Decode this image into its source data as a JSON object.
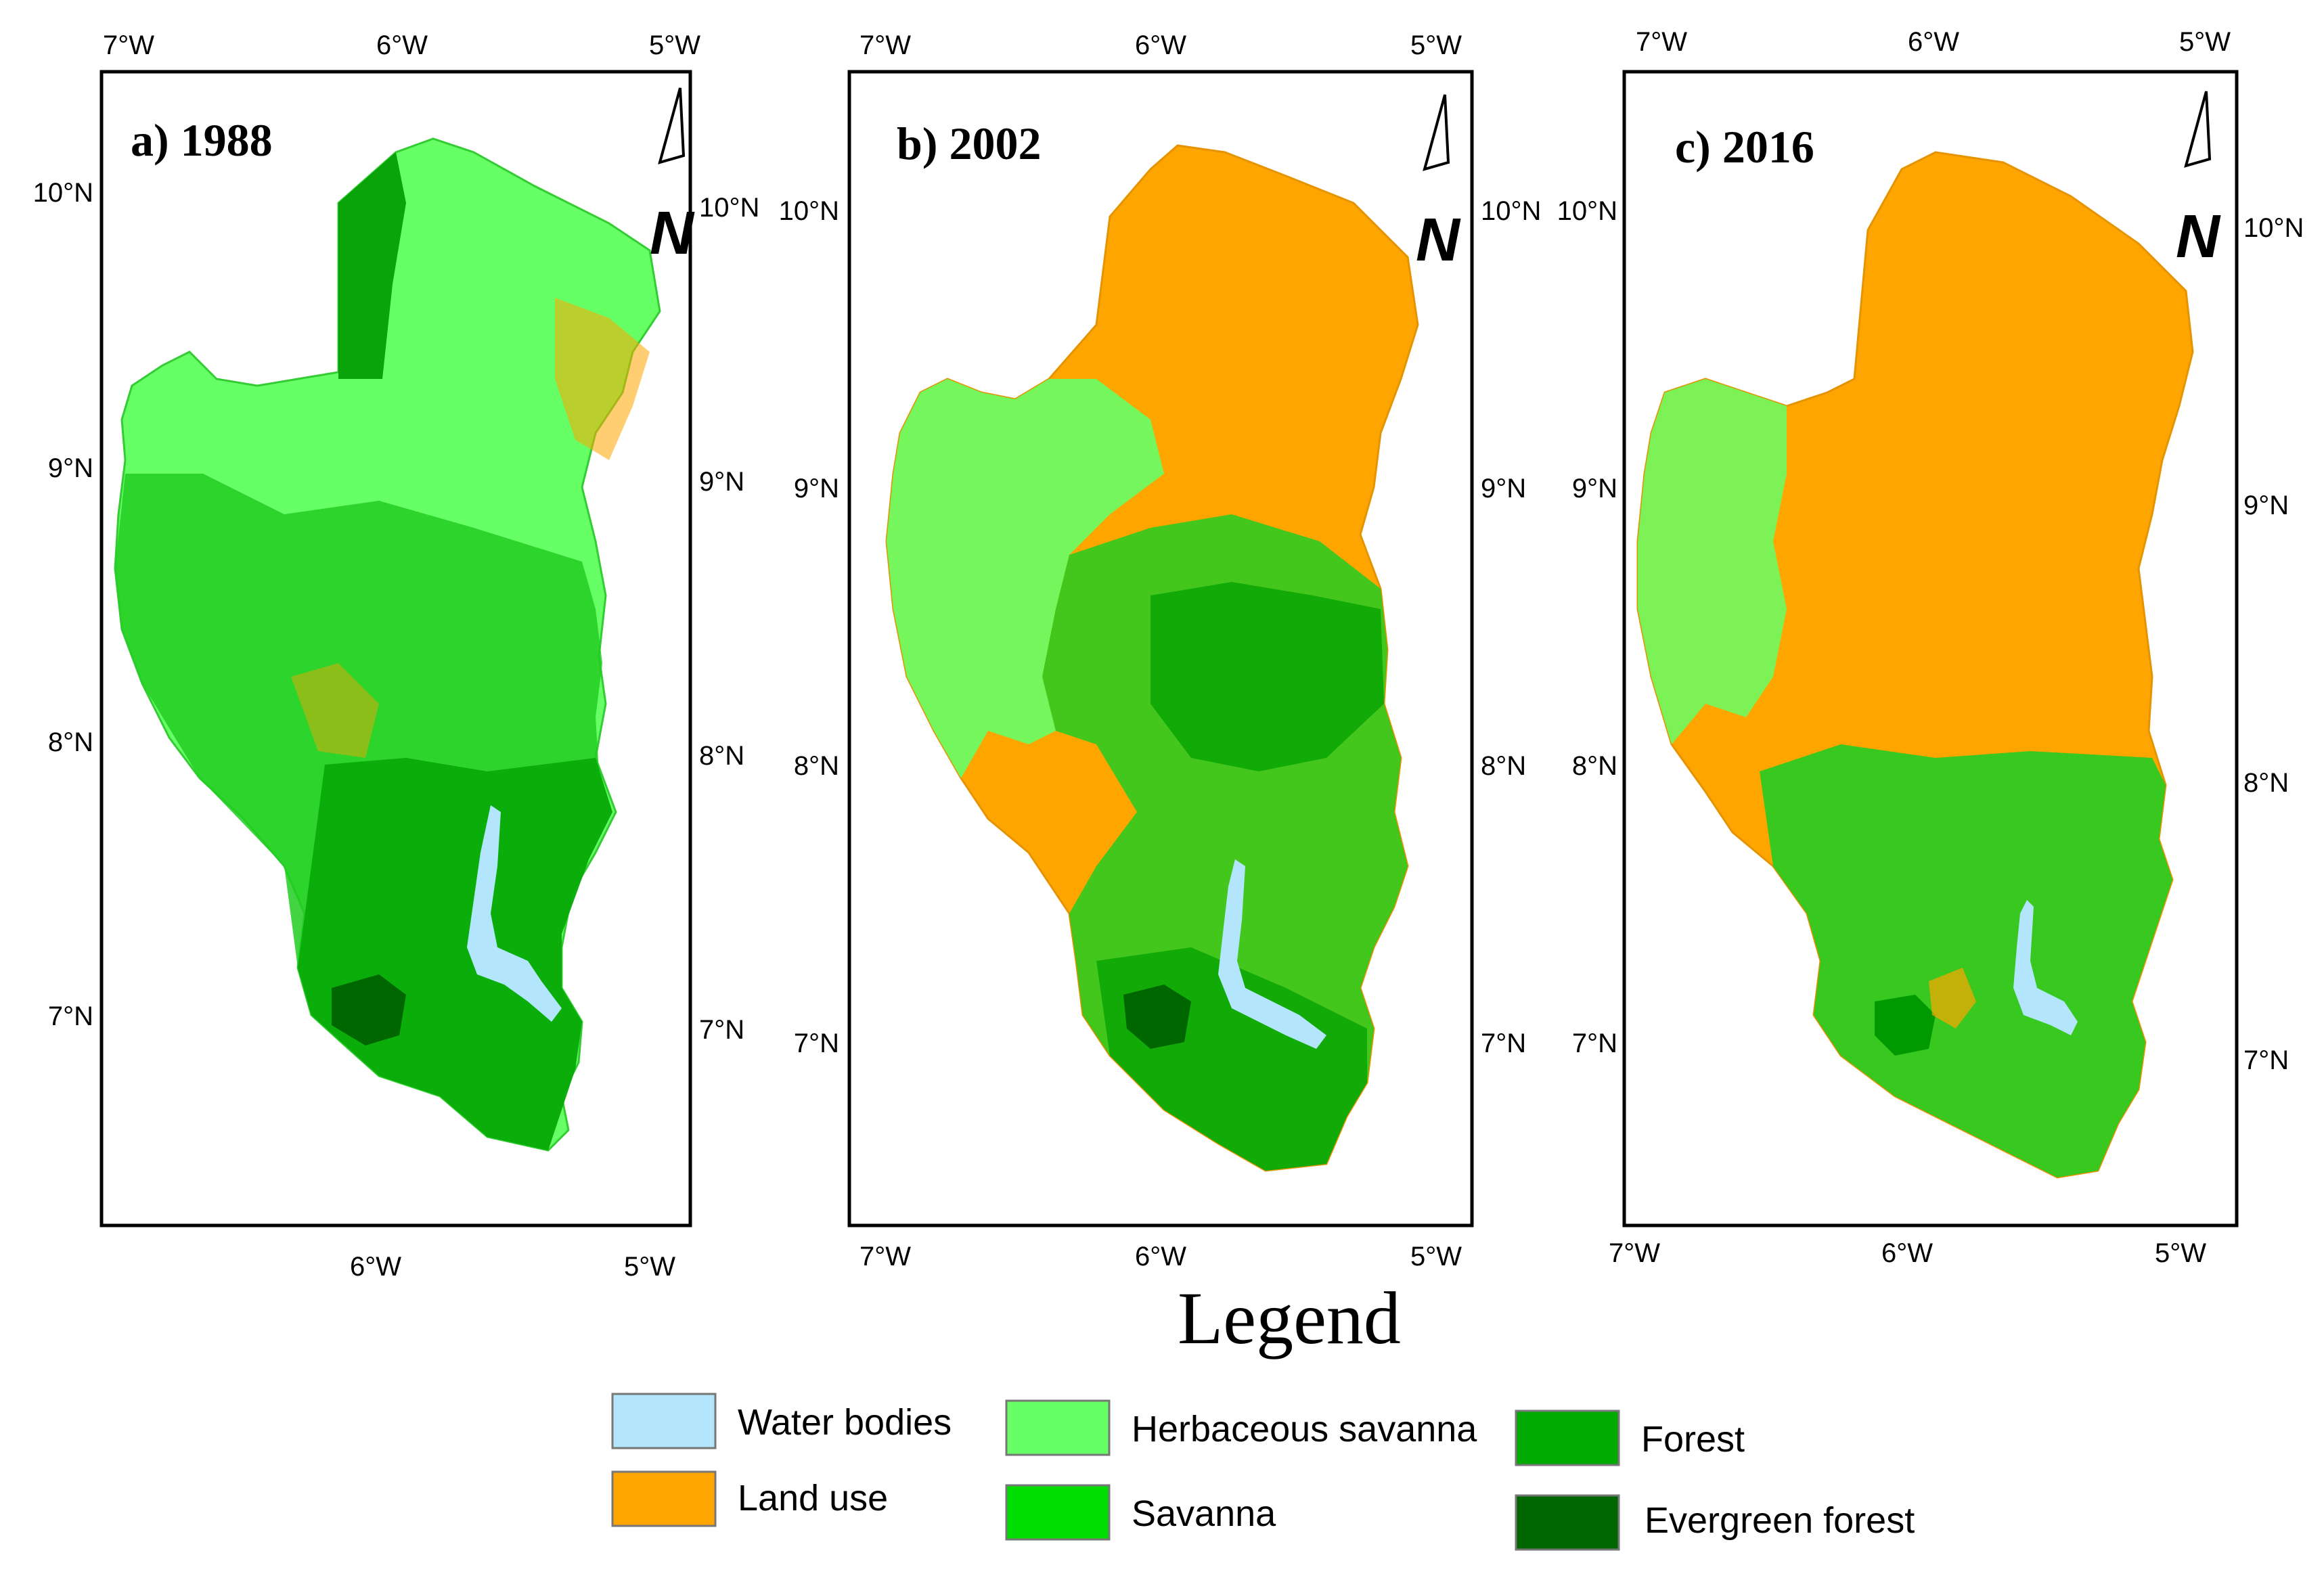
{
  "panels": [
    {
      "title": "a) 1988",
      "top_x_labels": [
        "7°W",
        "6°W",
        "5°W"
      ],
      "bottom_x_labels": [
        "6°W",
        "5°W"
      ],
      "left_y_labels": [
        "10°N",
        "9°N",
        "8°N",
        "7°N"
      ],
      "right_y_labels": [
        "10°N",
        "9°N",
        "8°N",
        "7°N"
      ],
      "dominant_class": "Herbaceous savanna / Savanna",
      "north_arrow_label": "N"
    },
    {
      "title": "b) 2002",
      "top_x_labels": [
        "7°W",
        "6°W",
        "5°W"
      ],
      "bottom_x_labels": [
        "7°W",
        "6°W",
        "5°W"
      ],
      "left_y_labels": [
        "10°N",
        "9°N",
        "8°N",
        "7°N"
      ],
      "right_y_labels": [
        "10°N",
        "9°N",
        "8°N",
        "7°N"
      ],
      "dominant_class": "Land use / Savanna",
      "north_arrow_label": "N"
    },
    {
      "title": "c) 2016",
      "top_x_labels": [
        "7°W",
        "6°W",
        "5°W"
      ],
      "bottom_x_labels": [
        "7°W",
        "6°W",
        "5°W"
      ],
      "left_y_labels": [
        "10°N",
        "9°N",
        "8°N",
        "7°N"
      ],
      "right_y_labels": [
        "10°N",
        "9°N",
        "8°N",
        "7°N"
      ],
      "dominant_class": "Land use / Savanna",
      "north_arrow_label": "N"
    }
  ],
  "legend": {
    "title": "Legend",
    "items": [
      {
        "label": "Water bodies",
        "color": "#b3e5fc"
      },
      {
        "label": "Land use",
        "color": "#ffa500"
      },
      {
        "label": "Herbaceous savanna",
        "color": "#66ff66"
      },
      {
        "label": "Savanna",
        "color": "#00dd00"
      },
      {
        "label": "Forest",
        "color": "#00aa00"
      },
      {
        "label": "Evergreen forest",
        "color": "#006600"
      }
    ]
  },
  "colors": {
    "water": "#b3e5fc",
    "land_use": "#ffa500",
    "herbaceous_savanna": "#66ff66",
    "savanna": "#00dd00",
    "forest": "#00aa00",
    "evergreen_forest": "#006600"
  }
}
